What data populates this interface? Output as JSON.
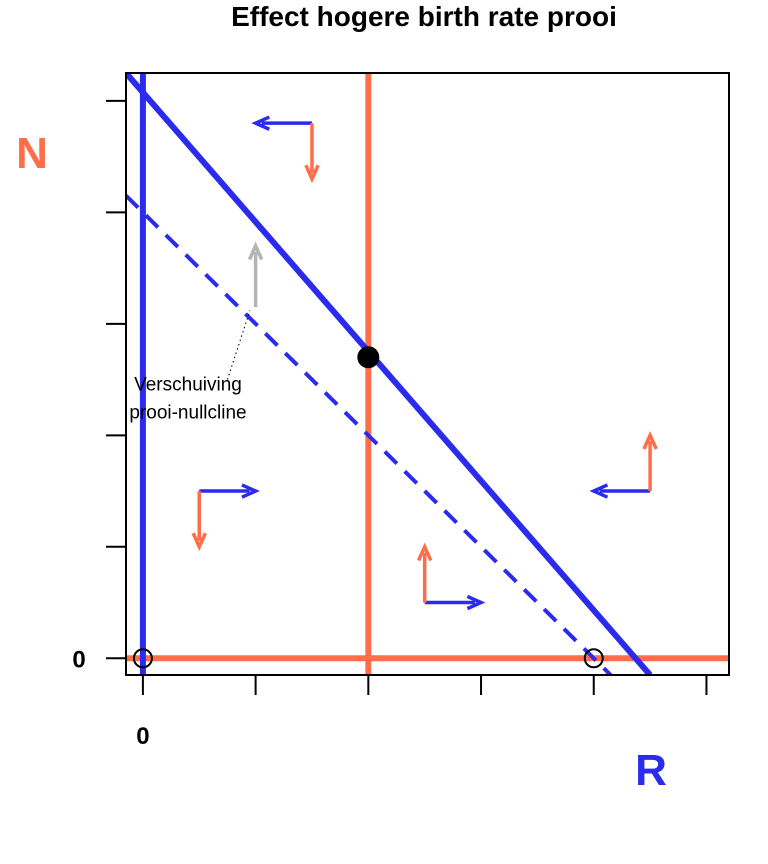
{
  "chart_data": {
    "type": "line",
    "title": "Effect hogere birth rate prooi",
    "xlabel": "R",
    "ylabel": "N",
    "xlim": [
      -0.15,
      5.2
    ],
    "ylim": [
      -0.15,
      5.25
    ],
    "x_ticks": [
      0,
      1,
      2,
      3,
      4,
      5
    ],
    "y_ticks": [
      0,
      1,
      2,
      3,
      4,
      5
    ],
    "x_tick_labels": [
      "0"
    ],
    "y_tick_labels": [
      "0"
    ],
    "grid": false,
    "colors": {
      "predator": "#FF6E4A",
      "prey": "#2B2BEE",
      "shift_arrow": "#B4B4B4",
      "point": "#000000"
    },
    "series": [
      {
        "role": "predator",
        "style": "solid",
        "points": [
          [
            -0.15,
            0
          ],
          [
            5.2,
            0
          ]
        ]
      },
      {
        "role": "predator",
        "style": "solid",
        "points": [
          [
            2,
            -0.15
          ],
          [
            2,
            5.25
          ]
        ]
      },
      {
        "role": "prey",
        "style": "solid",
        "points": [
          [
            0,
            -0.15
          ],
          [
            0,
            5.25
          ]
        ]
      },
      {
        "role": "prey",
        "style": "solid",
        "points": [
          [
            -0.15,
            5.25
          ],
          [
            4.5,
            -0.15
          ]
        ]
      },
      {
        "role": "prey",
        "style": "dashed",
        "points": [
          [
            -0.15,
            4.15
          ],
          [
            4.15,
            -0.15
          ]
        ]
      }
    ],
    "points": [
      {
        "x": 2,
        "y": 2.7,
        "filled": true
      },
      {
        "x": 0,
        "y": 0,
        "filled": false
      },
      {
        "x": 4,
        "y": 0,
        "filled": false
      }
    ],
    "flow_arrows": [
      {
        "x": 1.5,
        "y": 4.8,
        "dx": -0.5,
        "dy": -0.5
      },
      {
        "x": 0.5,
        "y": 1.5,
        "dx": 0.5,
        "dy": -0.5
      },
      {
        "x": 2.5,
        "y": 0.5,
        "dx": 0.5,
        "dy": 0.5
      },
      {
        "x": 4.5,
        "y": 1.5,
        "dx": -0.5,
        "dy": 0.5
      }
    ],
    "shift_arrow": {
      "x": 1,
      "from_y": 3.15,
      "to_y": 3.7
    },
    "annotation": {
      "lines": [
        "Verschuiving",
        "prooi-nullcline"
      ],
      "x": 0.4,
      "y": 2.4,
      "leader_from": [
        0.75,
        2.5
      ],
      "leader_to": [
        0.95,
        3.12
      ]
    }
  }
}
